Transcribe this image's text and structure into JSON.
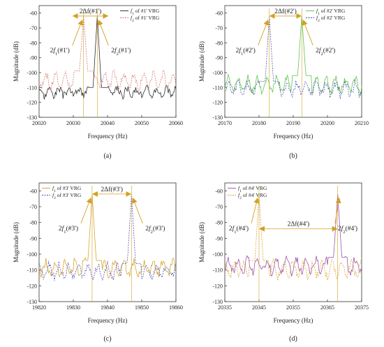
{
  "colors": {
    "arrow": "#d4a020",
    "black": "#222222",
    "red": "#d0706a",
    "green": "#58c048",
    "blue": "#4a4ab0",
    "gold": "#d4a020",
    "purple": "#9a4aa6",
    "axis": "#333333"
  },
  "chart_data": [
    {
      "type": "line",
      "panel_label": "(a)",
      "xlabel": "Frequency (Hz)",
      "ylabel": "Magnitude (dB)",
      "xlim": [
        20020,
        20060
      ],
      "ylim": [
        -130,
        -55
      ],
      "xticks": [
        20020,
        20030,
        20040,
        20050,
        20060
      ],
      "yticks": [
        -130,
        -120,
        -110,
        -100,
        -90,
        -80,
        -70,
        -60
      ],
      "legend_position": "top-right",
      "series": [
        {
          "name": "f1 of #1' VRG",
          "legend_sub": "1",
          "legend_rest": " of #1' VRG",
          "color": "black",
          "dash": false,
          "peak_x": 20037,
          "peak_y": -62,
          "noise": [
            -110,
            -116,
            -101,
            -119
          ],
          "seed": 3
        },
        {
          "name": "f2 of #1' VRG",
          "legend_sub": "2",
          "legend_rest": " of #1' VRG",
          "color": "red",
          "dash": true,
          "peak_x": 20033,
          "peak_y": -62,
          "noise": [
            -99,
            -112,
            -99,
            -114
          ],
          "seed": 7
        }
      ],
      "annotations": {
        "delta": "2Δf(#1')",
        "left": {
          "sub": "1",
          "rest": "(#1')"
        },
        "right": {
          "sub": "2",
          "rest": "(#1')"
        },
        "delta_y": -62
      }
    },
    {
      "type": "line",
      "panel_label": "(b)",
      "xlabel": "Frequency (Hz)",
      "ylabel": "Magnitude (dB)",
      "xlim": [
        20170,
        20210
      ],
      "ylim": [
        -130,
        -55
      ],
      "xticks": [
        20170,
        20180,
        20190,
        20200,
        20210
      ],
      "yticks": [
        -130,
        -120,
        -110,
        -100,
        -90,
        -80,
        -70,
        -60
      ],
      "legend_position": "top-right",
      "series": [
        {
          "name": "f1 of #2' VRG",
          "legend_sub": "1",
          "legend_rest": " of #2' VRG",
          "color": "green",
          "dash": false,
          "peak_x": 20192.5,
          "peak_y": -62,
          "noise": [
            -102,
            -114,
            -101,
            -119
          ],
          "seed": 11
        },
        {
          "name": "f2 of #2' VRG",
          "legend_sub": "2",
          "legend_rest": " of #2' VRG",
          "color": "blue",
          "dash": true,
          "peak_x": 20183,
          "peak_y": -62,
          "noise": [
            -106,
            -116,
            -103,
            -121
          ],
          "seed": 5
        }
      ],
      "annotations": {
        "delta": "2Δf(#2')",
        "left": {
          "sub": "1",
          "rest": "(#2')"
        },
        "right": {
          "sub": "2",
          "rest": "(#2')"
        },
        "delta_y": -62
      }
    },
    {
      "type": "line",
      "panel_label": "(c)",
      "xlabel": "Frequency (Hz)",
      "ylabel": "Magnitude (dB)",
      "xlim": [
        19820,
        19860
      ],
      "ylim": [
        -130,
        -55
      ],
      "xticks": [
        19820,
        19830,
        19840,
        19850,
        19860
      ],
      "yticks": [
        -130,
        -120,
        -110,
        -100,
        -90,
        -80,
        -70,
        -60
      ],
      "legend_position": "top-left",
      "series": [
        {
          "name": "f1 of #3' VRG",
          "legend_sub": "1",
          "legend_rest": " of #3' VRG",
          "color": "gold",
          "dash": false,
          "peak_x": 19835.5,
          "peak_y": -62,
          "noise": [
            -104,
            -114,
            -100,
            -118
          ],
          "seed": 13
        },
        {
          "name": "f2 of #3' VRG",
          "legend_sub": "2",
          "legend_rest": " of #3' VRG",
          "color": "blue",
          "dash": true,
          "peak_x": 19847,
          "peak_y": -62,
          "noise": [
            -106,
            -116,
            -103,
            -119
          ],
          "seed": 9
        }
      ],
      "annotations": {
        "delta": "2Δf(#3')",
        "left": {
          "sub": "1",
          "rest": "(#3')"
        },
        "right": {
          "sub": "2",
          "rest": "(#3')"
        },
        "delta_y": -62
      }
    },
    {
      "type": "line",
      "panel_label": "(d)",
      "xlabel": "Frequency (Hz)",
      "ylabel": "Magnitude (dB)",
      "xlim": [
        20335,
        20375
      ],
      "ylim": [
        -130,
        -55
      ],
      "xticks": [
        20335,
        20345,
        20355,
        20365,
        20375
      ],
      "yticks": [
        -130,
        -120,
        -110,
        -100,
        -90,
        -80,
        -70,
        -60
      ],
      "legend_position": "top-left",
      "series": [
        {
          "name": "f1 of #4' VRG",
          "legend_sub": "1",
          "legend_rest": " of #4' VRG",
          "color": "purple",
          "dash": false,
          "peak_x": 20368,
          "peak_y": -62,
          "noise": [
            -102,
            -113,
            -101,
            -119
          ],
          "seed": 17
        },
        {
          "name": "f2 of #4' VRG",
          "legend_sub": "2",
          "legend_rest": " of #4' VRG",
          "color": "gold",
          "dash": true,
          "peak_x": 20345,
          "peak_y": -62,
          "noise": [
            -104,
            -115,
            -100,
            -120
          ],
          "seed": 21
        }
      ],
      "annotations": {
        "delta": "2Δf(#4')",
        "left": {
          "sub": "1",
          "rest": "(#4')"
        },
        "right": {
          "sub": "2",
          "rest": "(#4')"
        },
        "delta_y": -84
      }
    }
  ]
}
